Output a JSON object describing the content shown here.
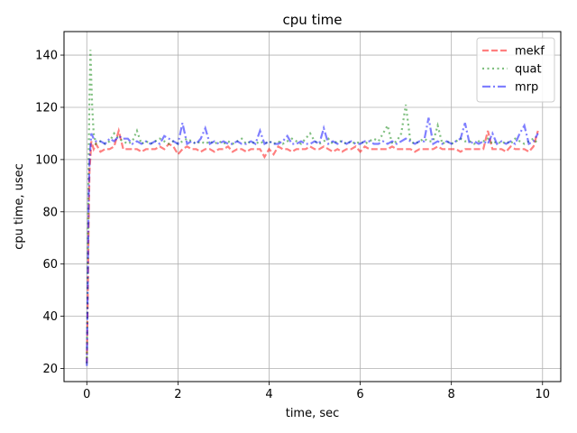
{
  "chart_data": {
    "type": "line",
    "title": "cpu time",
    "xlabel": "time, sec",
    "ylabel": "cpu time, usec",
    "xlim": [
      -0.5,
      10.4
    ],
    "ylim": [
      15,
      149
    ],
    "xticks": [
      0,
      2,
      4,
      6,
      8,
      10
    ],
    "yticks": [
      20,
      40,
      60,
      80,
      100,
      120,
      140
    ],
    "xtick_labels": [
      "0",
      "2",
      "4",
      "6",
      "8",
      "10"
    ],
    "ytick_labels": [
      "20",
      "40",
      "60",
      "80",
      "100",
      "120",
      "140"
    ],
    "grid": true,
    "legend_position": "top-right",
    "series": [
      {
        "name": "mekf",
        "color": "#ff0000",
        "style": "dashed",
        "x": [
          0,
          0.02,
          0.04,
          0.06,
          0.08,
          0.1,
          0.15,
          0.2,
          0.3,
          0.4,
          0.5,
          0.6,
          0.7,
          0.8,
          0.9,
          1.0,
          1.1,
          1.2,
          1.3,
          1.4,
          1.5,
          1.6,
          1.7,
          1.8,
          1.9,
          2.0,
          2.1,
          2.2,
          2.3,
          2.4,
          2.5,
          2.6,
          2.7,
          2.8,
          2.9,
          3.0,
          3.1,
          3.2,
          3.3,
          3.4,
          3.5,
          3.6,
          3.7,
          3.8,
          3.9,
          4.0,
          4.1,
          4.2,
          4.3,
          4.4,
          4.5,
          4.6,
          4.7,
          4.8,
          4.9,
          5.0,
          5.1,
          5.2,
          5.3,
          5.4,
          5.5,
          5.6,
          5.7,
          5.8,
          5.9,
          6.0,
          6.1,
          6.2,
          6.3,
          6.4,
          6.5,
          6.6,
          6.7,
          6.8,
          6.9,
          7.0,
          7.1,
          7.2,
          7.3,
          7.4,
          7.5,
          7.6,
          7.7,
          7.8,
          7.9,
          8.0,
          8.1,
          8.2,
          8.3,
          8.4,
          8.5,
          8.6,
          8.7,
          8.8,
          8.9,
          9.0,
          9.1,
          9.2,
          9.3,
          9.4,
          9.5,
          9.6,
          9.7,
          9.8,
          9.9
        ],
        "y": [
          22,
          45,
          75,
          96,
          101,
          107,
          104,
          106,
          103,
          104,
          104,
          105,
          111,
          104,
          104,
          104,
          104,
          103,
          104,
          104,
          104,
          105,
          104,
          106,
          105,
          102,
          104,
          105,
          104,
          104,
          103,
          104,
          104,
          103,
          104,
          104,
          105,
          103,
          104,
          104,
          103,
          104,
          104,
          104,
          101,
          104,
          102,
          105,
          104,
          104,
          103,
          104,
          104,
          104,
          105,
          104,
          104,
          105,
          104,
          103,
          104,
          103,
          104,
          104,
          105,
          103,
          105,
          104,
          104,
          104,
          104,
          104,
          105,
          104,
          104,
          104,
          104,
          103,
          104,
          104,
          104,
          104,
          105,
          104,
          104,
          104,
          104,
          103,
          104,
          104,
          104,
          104,
          104,
          111,
          104,
          104,
          104,
          103,
          105,
          104,
          104,
          104,
          103,
          105,
          111
        ]
      },
      {
        "name": "quat",
        "color": "#008000",
        "style": "dotted",
        "x": [
          0,
          0.02,
          0.04,
          0.06,
          0.08,
          0.1,
          0.12,
          0.15,
          0.2,
          0.3,
          0.4,
          0.5,
          0.6,
          0.7,
          0.8,
          0.9,
          1.0,
          1.1,
          1.2,
          1.3,
          1.4,
          1.5,
          1.6,
          1.7,
          1.8,
          1.9,
          2.0,
          2.1,
          2.2,
          2.3,
          2.4,
          2.5,
          2.6,
          2.7,
          2.8,
          2.9,
          3.0,
          3.1,
          3.2,
          3.3,
          3.4,
          3.5,
          3.6,
          3.7,
          3.8,
          3.9,
          4.0,
          4.1,
          4.2,
          4.3,
          4.4,
          4.5,
          4.6,
          4.7,
          4.8,
          4.9,
          5.0,
          5.1,
          5.2,
          5.3,
          5.4,
          5.5,
          5.6,
          5.7,
          5.8,
          5.9,
          6.0,
          6.1,
          6.2,
          6.3,
          6.4,
          6.5,
          6.6,
          6.7,
          6.8,
          6.9,
          7.0,
          7.1,
          7.2,
          7.3,
          7.4,
          7.5,
          7.6,
          7.7,
          7.8,
          7.9,
          8.0,
          8.1,
          8.2,
          8.3,
          8.4,
          8.5,
          8.6,
          8.7,
          8.8,
          8.9,
          9.0,
          9.1,
          9.2,
          9.3,
          9.4,
          9.5,
          9.6,
          9.7,
          9.8,
          9.9
        ],
        "y": [
          22,
          60,
          100,
          125,
          142,
          130,
          120,
          110,
          106,
          107,
          106,
          107,
          110,
          108,
          107,
          106,
          107,
          111,
          106,
          107,
          106,
          107,
          108,
          107,
          106,
          107,
          106,
          107,
          108,
          107,
          106,
          107,
          106,
          107,
          106,
          107,
          106,
          107,
          106,
          107,
          108,
          106,
          107,
          106,
          107,
          106,
          107,
          106,
          107,
          106,
          107,
          108,
          107,
          106,
          108,
          110,
          107,
          106,
          107,
          108,
          106,
          107,
          107,
          106,
          107,
          106,
          107,
          106,
          107,
          108,
          107,
          110,
          113,
          106,
          107,
          110,
          121,
          107,
          106,
          107,
          108,
          107,
          107,
          113,
          106,
          107,
          106,
          107,
          108,
          107,
          107,
          106,
          107,
          107,
          108,
          106,
          107,
          106,
          107,
          106,
          108,
          107,
          106,
          107,
          108,
          106
        ]
      },
      {
        "name": "mrp",
        "color": "#0000ff",
        "style": "dashdot",
        "x": [
          0,
          0.02,
          0.04,
          0.06,
          0.08,
          0.1,
          0.15,
          0.2,
          0.3,
          0.4,
          0.5,
          0.6,
          0.7,
          0.8,
          0.9,
          1.0,
          1.1,
          1.2,
          1.3,
          1.4,
          1.5,
          1.6,
          1.7,
          1.8,
          1.9,
          2.0,
          2.1,
          2.2,
          2.3,
          2.4,
          2.5,
          2.6,
          2.7,
          2.8,
          2.9,
          3.0,
          3.1,
          3.2,
          3.3,
          3.4,
          3.5,
          3.6,
          3.7,
          3.8,
          3.9,
          4.0,
          4.1,
          4.2,
          4.3,
          4.4,
          4.5,
          4.6,
          4.7,
          4.8,
          4.9,
          5.0,
          5.1,
          5.2,
          5.3,
          5.4,
          5.5,
          5.6,
          5.7,
          5.8,
          5.9,
          6.0,
          6.1,
          6.2,
          6.3,
          6.4,
          6.5,
          6.6,
          6.7,
          6.8,
          6.9,
          7.0,
          7.1,
          7.2,
          7.3,
          7.4,
          7.5,
          7.6,
          7.7,
          7.8,
          7.9,
          8.0,
          8.1,
          8.2,
          8.3,
          8.4,
          8.5,
          8.6,
          8.7,
          8.8,
          8.9,
          9.0,
          9.1,
          9.2,
          9.3,
          9.4,
          9.5,
          9.6,
          9.7,
          9.8,
          9.9
        ],
        "y": [
          21,
          50,
          85,
          100,
          105,
          110,
          108,
          107,
          107,
          106,
          108,
          107,
          109,
          108,
          108,
          106,
          107,
          106,
          107,
          106,
          107,
          106,
          109,
          108,
          107,
          106,
          114,
          106,
          107,
          106,
          108,
          112,
          106,
          107,
          106,
          107,
          106,
          106,
          107,
          106,
          106,
          107,
          106,
          111,
          106,
          107,
          106,
          106,
          107,
          109,
          106,
          106,
          107,
          106,
          106,
          107,
          106,
          112,
          106,
          107,
          106,
          107,
          106,
          107,
          106,
          106,
          107,
          107,
          106,
          106,
          107,
          106,
          107,
          106,
          107,
          108,
          107,
          106,
          107,
          107,
          116,
          106,
          107,
          106,
          107,
          106,
          107,
          108,
          114,
          106,
          107,
          106,
          107,
          106,
          110,
          106,
          107,
          106,
          107,
          106,
          110,
          113,
          106,
          107,
          110
        ]
      }
    ]
  }
}
